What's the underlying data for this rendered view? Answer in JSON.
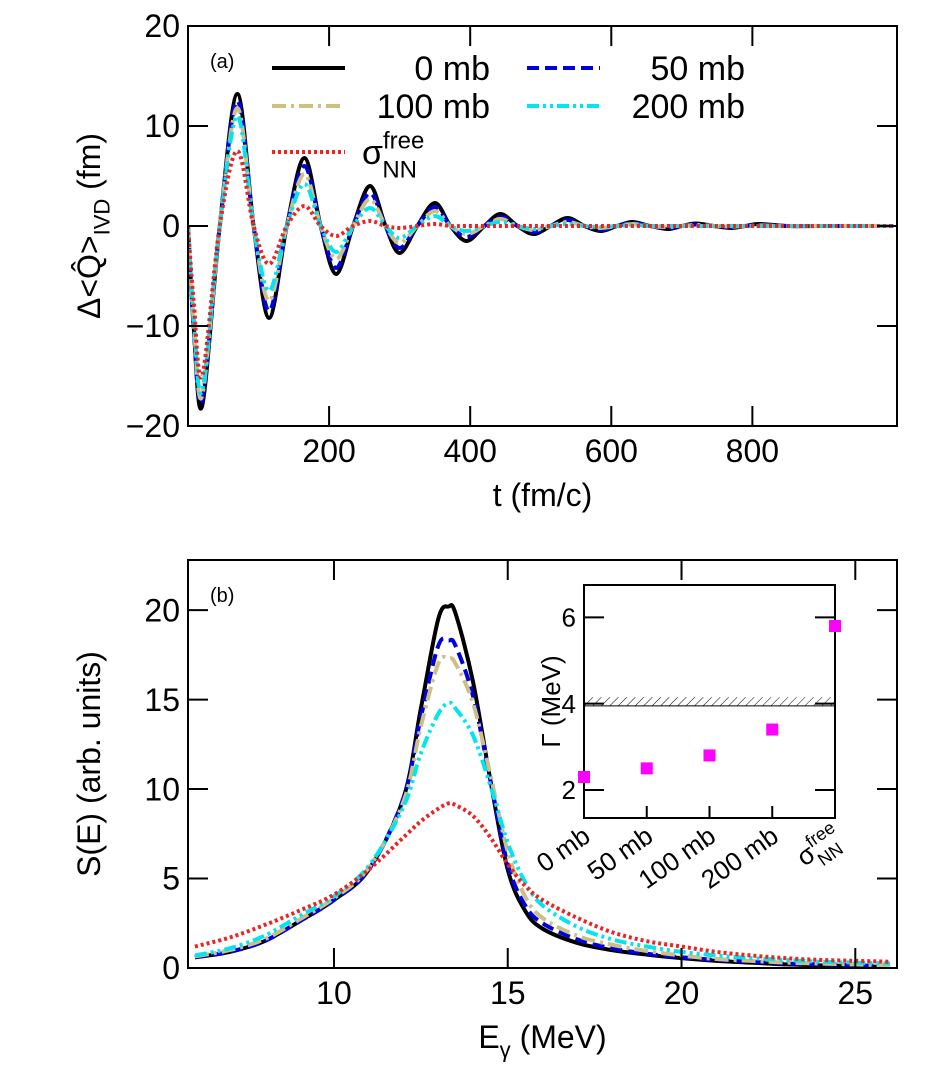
{
  "chart_data": [
    {
      "type": "line",
      "panel": "(a)",
      "y_label": {
        "main": "Δ<Q̂>",
        "sub": "IVD",
        "tail": " (fm)"
      },
      "x_label": "t (fm/c)",
      "xlim": [
        0,
        1005
      ],
      "ylim": [
        -20,
        20
      ],
      "xticks": [
        200,
        400,
        600,
        800
      ],
      "yticks": [
        {
          "value": -20,
          "label": "−20"
        },
        {
          "value": -10,
          "label": "−10"
        },
        0,
        10,
        20
      ],
      "legend": true,
      "x": [
        0,
        8,
        20,
        45,
        70,
        93,
        115,
        140,
        165,
        188,
        210,
        234,
        258,
        280,
        300,
        325,
        350,
        372,
        395,
        420,
        443,
        467,
        490,
        514,
        538,
        562,
        585,
        608,
        630,
        655,
        680,
        700,
        720,
        745,
        770,
        790,
        810,
        850,
        900,
        1000
      ],
      "series": [
        {
          "name": "0 mb",
          "color": "#000000",
          "dash": "solid",
          "values": [
            0,
            -10,
            -18,
            0,
            13.2,
            0,
            -9.2,
            0,
            6.8,
            0,
            -4.8,
            0,
            4.0,
            0,
            -2.7,
            0,
            2.3,
            0,
            -1.5,
            0,
            1.2,
            0,
            -0.8,
            0,
            0.8,
            0,
            -0.5,
            0,
            0.4,
            0,
            -0.3,
            0,
            0.25,
            0,
            -0.2,
            0,
            0.2,
            0,
            0,
            0
          ]
        },
        {
          "name": "50 mb",
          "color": "#0000dd",
          "dash": "dashed",
          "values": [
            0,
            -10,
            -17.5,
            0,
            12.5,
            0,
            -8.5,
            0,
            6.0,
            0,
            -4.2,
            0,
            3.3,
            0,
            -2.2,
            0,
            1.9,
            0,
            -1.1,
            0,
            0.9,
            0,
            -0.6,
            0,
            0.6,
            0,
            -0.4,
            0,
            0.3,
            0,
            -0.2,
            0,
            0.15,
            0,
            -0.1,
            0,
            0.1,
            0,
            0,
            0
          ]
        },
        {
          "name": "100 mb",
          "color": "#cdbf85",
          "dash": "dashdot",
          "values": [
            0,
            -9.5,
            -17,
            0,
            11.8,
            0,
            -7.5,
            0,
            5.2,
            0,
            -3.3,
            0,
            2.7,
            0,
            -1.7,
            0,
            1.5,
            0,
            -0.8,
            0,
            0.7,
            0,
            -0.4,
            0,
            0.4,
            0,
            -0.2,
            0,
            0.2,
            0,
            -0.1,
            0,
            0.1,
            0,
            -0.05,
            0,
            0.05,
            0,
            0,
            0
          ]
        },
        {
          "name": "200 mb",
          "color": "#00e5ee",
          "dash": "dashdotdot",
          "values": [
            0,
            -9,
            -16.5,
            0,
            11,
            0,
            -6.5,
            0,
            4.2,
            0,
            -2.6,
            0,
            1.8,
            0,
            -1.2,
            0,
            1.0,
            0,
            -0.5,
            0,
            0.4,
            0,
            -0.3,
            0,
            0.2,
            0,
            -0.1,
            0,
            0.1,
            0,
            0,
            0,
            0,
            0,
            0,
            0,
            0,
            0,
            0,
            0
          ]
        },
        {
          "name": {
            "base": "σ",
            "sup": "free",
            "sub": "NN"
          },
          "color": "#ee2222",
          "dash": "dotted",
          "values": [
            0,
            -7.5,
            -15,
            0,
            7.5,
            0,
            -3.8,
            0,
            2.0,
            0,
            -1.0,
            0,
            0.5,
            0,
            -0.2,
            0,
            0.2,
            0,
            0,
            0,
            0,
            0,
            0,
            0,
            0,
            0,
            0,
            0,
            0,
            0,
            0,
            0,
            0,
            0,
            0,
            0,
            0,
            0,
            0,
            0
          ]
        }
      ]
    },
    {
      "type": "line",
      "panel": "(b)",
      "y_label": "S(E) (arb. units)",
      "x_label": {
        "main": "E",
        "sub": "γ",
        "tail": " (MeV)"
      },
      "xlim": [
        5.8,
        26.2
      ],
      "ylim": [
        0,
        22.8
      ],
      "xticks": [
        10,
        15,
        20,
        25
      ],
      "yticks": [
        0,
        5,
        10,
        15,
        20
      ],
      "legend": false,
      "x": [
        6,
        7,
        8,
        9,
        10,
        11,
        12,
        12.5,
        13,
        13.3,
        13.5,
        14,
        14.5,
        15,
        15.5,
        16,
        17,
        18,
        19,
        20,
        21,
        22,
        23,
        24,
        25,
        26
      ],
      "series": [
        {
          "color": "#000000",
          "dash": "solid",
          "values": [
            0.6,
            0.9,
            1.5,
            2.6,
            3.8,
            5.5,
            9.5,
            14.5,
            19.5,
            20.2,
            19.8,
            16,
            10.5,
            5.5,
            3.2,
            2.2,
            1.4,
            1.0,
            0.75,
            0.55,
            0.4,
            0.3,
            0.2,
            0.15,
            0.1,
            0.05
          ]
        },
        {
          "color": "#0000dd",
          "dash": "dashed",
          "values": [
            0.6,
            0.9,
            1.5,
            2.6,
            3.8,
            5.5,
            9.5,
            14,
            18,
            18.3,
            18,
            15.2,
            10.5,
            5.8,
            3.5,
            2.5,
            1.6,
            1.1,
            0.8,
            0.6,
            0.45,
            0.35,
            0.25,
            0.2,
            0.15,
            0.1
          ]
        },
        {
          "color": "#cdbf85",
          "dash": "dashdot",
          "values": [
            0.65,
            1.0,
            1.6,
            2.7,
            3.9,
            5.6,
            9.3,
            13.5,
            17,
            17.3,
            17,
            14.8,
            10.8,
            6.5,
            4.0,
            2.8,
            1.8,
            1.3,
            0.95,
            0.7,
            0.5,
            0.4,
            0.3,
            0.25,
            0.2,
            0.15
          ]
        },
        {
          "color": "#00e5ee",
          "dash": "dashdotdot",
          "values": [
            0.7,
            1.1,
            1.8,
            2.9,
            4.0,
            5.7,
            9.0,
            12.0,
            14.2,
            14.8,
            14.5,
            13,
            10.2,
            7.0,
            4.8,
            3.5,
            2.3,
            1.6,
            1.2,
            0.9,
            0.7,
            0.55,
            0.45,
            0.35,
            0.3,
            0.25
          ]
        },
        {
          "color": "#ee2222",
          "dash": "dotted",
          "values": [
            1.2,
            1.7,
            2.4,
            3.2,
            4.1,
            5.5,
            7.3,
            8.2,
            8.9,
            9.2,
            9.1,
            8.5,
            7.3,
            5.8,
            4.6,
            3.8,
            2.8,
            2.0,
            1.5,
            1.2,
            0.9,
            0.7,
            0.55,
            0.45,
            0.4,
            0.35
          ]
        }
      ]
    },
    {
      "type": "scatter",
      "y_label": "Γ (MeV)",
      "categories": [
        "0 mb",
        "50 mb",
        "100 mb",
        "200 mb",
        {
          "base": "σ",
          "sup": "free",
          "sub": "NN"
        }
      ],
      "values": [
        2.3,
        2.5,
        2.8,
        3.4,
        5.8
      ],
      "color": "#ff00ff",
      "ylim": [
        1.35,
        6.75
      ],
      "yticks": [
        2,
        4,
        6
      ],
      "hatch_band": [
        3.95,
        4.15
      ]
    }
  ]
}
